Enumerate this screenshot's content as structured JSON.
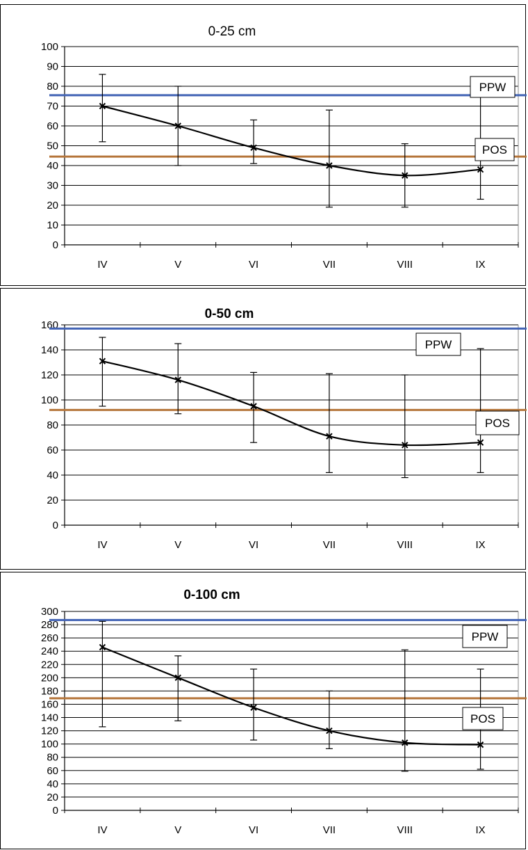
{
  "chart_data": [
    {
      "type": "line",
      "title": "0-25 cm",
      "categories": [
        "IV",
        "V",
        "VI",
        "VII",
        "VIII",
        "IX"
      ],
      "ylim": [
        0,
        100
      ],
      "yticks": [
        0,
        10,
        20,
        30,
        40,
        50,
        60,
        70,
        80,
        90,
        100
      ],
      "grid": true,
      "series": [
        {
          "values": [
            70,
            60,
            49,
            40,
            35,
            38
          ],
          "error_low": [
            52,
            40,
            41,
            19,
            19,
            23
          ],
          "error_high": [
            86,
            80,
            63,
            68,
            51,
            77
          ]
        }
      ],
      "reference_lines": [
        {
          "label": "PPW",
          "value": 75.5,
          "color": "#4263b5"
        },
        {
          "label": "POS",
          "value": 44.5,
          "color": "#b5753a"
        }
      ]
    },
    {
      "type": "line",
      "title": "0-50 cm",
      "categories": [
        "IV",
        "V",
        "VI",
        "VII",
        "VIII",
        "IX"
      ],
      "ylim": [
        0,
        160
      ],
      "yticks": [
        0,
        20,
        40,
        60,
        80,
        100,
        120,
        140,
        160
      ],
      "grid": true,
      "series": [
        {
          "values": [
            131,
            116,
            95,
            71,
            64,
            66
          ],
          "error_low": [
            95,
            89,
            66,
            42,
            38,
            42
          ],
          "error_high": [
            150,
            145,
            122,
            121,
            120,
            141
          ]
        }
      ],
      "reference_lines": [
        {
          "label": "PPW",
          "value": 157,
          "color": "#4263b5"
        },
        {
          "label": "POS",
          "value": 92,
          "color": "#b5753a"
        }
      ]
    },
    {
      "type": "line",
      "title": "0-100 cm",
      "categories": [
        "IV",
        "V",
        "VI",
        "VII",
        "VIII",
        "IX"
      ],
      "ylim": [
        0,
        300
      ],
      "yticks": [
        0,
        20,
        40,
        60,
        80,
        100,
        120,
        140,
        160,
        180,
        200,
        220,
        240,
        260,
        280,
        300
      ],
      "grid": true,
      "series": [
        {
          "values": [
            246,
            200,
            155,
            120,
            102,
            99
          ],
          "error_low": [
            126,
            135,
            106,
            93,
            59,
            62
          ],
          "error_high": [
            285,
            233,
            213,
            180,
            242,
            213
          ]
        }
      ],
      "reference_lines": [
        {
          "label": "PPW",
          "value": 287,
          "color": "#4263b5"
        },
        {
          "label": "POS",
          "value": 169,
          "color": "#b5753a"
        }
      ]
    }
  ]
}
